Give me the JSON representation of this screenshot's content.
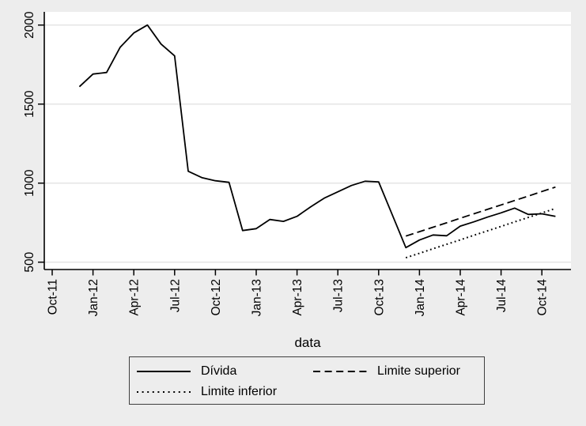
{
  "figure": {
    "bg_color": "#ededed",
    "plot_bg_color": "#ffffff",
    "grid_color": "#e3e3e3",
    "axis_color": "#000000",
    "series_color": "#000000"
  },
  "chart_data": {
    "type": "line",
    "title": "",
    "xlabel": "data",
    "ylabel": "",
    "grid": "horizontal",
    "legend_position": "bottom",
    "y_ticks": [
      500,
      1000,
      1500,
      2000
    ],
    "ylim": [
      450,
      2090
    ],
    "x_tick_labels": [
      "Oct-11",
      "Jan-12",
      "Apr-12",
      "Jul-12",
      "Oct-12",
      "Jan-13",
      "Apr-13",
      "Jul-13",
      "Oct-13",
      "Jan-14",
      "Apr-14",
      "Jul-14",
      "Oct-14"
    ],
    "x_tick_month_step": 3,
    "series": [
      {
        "name": "Dívida",
        "style": "solid",
        "start_month": "Dec-11",
        "end_month": "Nov-14",
        "x_start_index": 2,
        "x_months": [
          "Dec-11",
          "Jan-12",
          "Feb-12",
          "Mar-12",
          "Apr-12",
          "May-12",
          "Jun-12",
          "Jul-12",
          "Aug-12",
          "Sep-12",
          "Oct-12",
          "Nov-12",
          "Dec-12",
          "Jan-13",
          "Feb-13",
          "Mar-13",
          "Apr-13",
          "May-13",
          "Jun-13",
          "Jul-13",
          "Aug-13",
          "Sep-13",
          "Oct-13",
          "Nov-13",
          "Dec-13",
          "Jan-14",
          "Feb-14",
          "Mar-14",
          "Apr-14",
          "May-14",
          "Jun-14",
          "Jul-14",
          "Aug-14",
          "Sep-14",
          "Oct-14",
          "Nov-14"
        ],
        "values": [
          1610,
          1690,
          1700,
          1860,
          1950,
          2000,
          1880,
          1805,
          1075,
          1035,
          1015,
          1005,
          700,
          712,
          770,
          758,
          790,
          850,
          905,
          945,
          985,
          1012,
          1008,
          800,
          592,
          640,
          672,
          667,
          728,
          755,
          785,
          812,
          842,
          802,
          806,
          790
        ]
      },
      {
        "name": "Limite superior",
        "style": "dashed",
        "start_month": "Dec-13",
        "end_month": "Nov-14",
        "x_start_index": 26,
        "x_months": [
          "Dec-13",
          "Jan-14",
          "Feb-14",
          "Mar-14",
          "Apr-14",
          "May-14",
          "Jun-14",
          "Jul-14",
          "Aug-14",
          "Sep-14",
          "Oct-14",
          "Nov-14"
        ],
        "values": [
          665,
          693,
          721,
          749,
          778,
          806,
          834,
          862,
          890,
          918,
          947,
          975
        ]
      },
      {
        "name": "Limite inferior",
        "style": "dotted",
        "start_month": "Dec-13",
        "end_month": "Nov-14",
        "x_start_index": 26,
        "x_months": [
          "Dec-13",
          "Jan-14",
          "Feb-14",
          "Mar-14",
          "Apr-14",
          "May-14",
          "Jun-14",
          "Jul-14",
          "Aug-14",
          "Sep-14",
          "Oct-14",
          "Nov-14"
        ],
        "values": [
          528,
          556,
          585,
          613,
          641,
          670,
          698,
          726,
          755,
          783,
          811,
          840
        ]
      }
    ]
  },
  "legend": {
    "items": [
      {
        "label": "Dívida",
        "line_style": "solid"
      },
      {
        "label": "Limite superior",
        "line_style": "dashed"
      },
      {
        "label": "Limite inferior",
        "line_style": "dotted"
      }
    ]
  }
}
